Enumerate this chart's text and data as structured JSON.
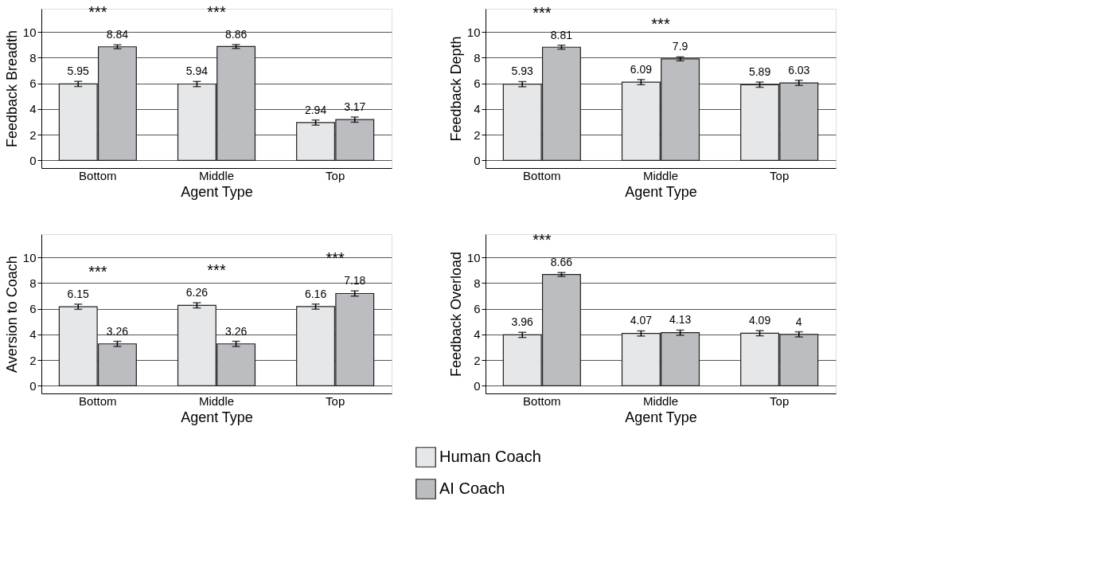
{
  "chart_data": [
    {
      "type": "bar",
      "xlabel": "Agent Type",
      "ylabel": "Feedback Breadth",
      "categories": [
        "Bottom",
        "Middle",
        "Top"
      ],
      "ylim": [
        -0.6,
        11.8
      ],
      "yticks": [
        0,
        2,
        4,
        6,
        8,
        10
      ],
      "grid": "y",
      "legend": "bottom",
      "data_labels": true,
      "series": [
        {
          "name": "Human Coach",
          "color": "#e6e7e8",
          "values": [
            5.95,
            5.94,
            2.94
          ],
          "errors": [
            0.2,
            0.2,
            0.2
          ]
        },
        {
          "name": "AI Coach",
          "color": "#bcbdc0",
          "values": [
            8.84,
            8.86,
            3.17
          ],
          "errors": [
            0.15,
            0.15,
            0.2
          ]
        }
      ],
      "annotations": [
        "***",
        "***"
      ]
    },
    {
      "type": "bar",
      "xlabel": "Agent Type",
      "ylabel": "Feedback Depth",
      "categories": [
        "Bottom",
        "Middle",
        "Top"
      ],
      "ylim": [
        -0.6,
        11.8
      ],
      "yticks": [
        0,
        2,
        4,
        6,
        8,
        10
      ],
      "grid": "y",
      "legend": "bottom",
      "data_labels": true,
      "series": [
        {
          "name": "Human Coach",
          "color": "#e6e7e8",
          "values": [
            5.93,
            6.09,
            5.89
          ],
          "errors": [
            0.2,
            0.2,
            0.2
          ]
        },
        {
          "name": "AI Coach",
          "color": "#bcbdc0",
          "values": [
            8.81,
            7.9,
            6.03
          ],
          "errors": [
            0.15,
            0.15,
            0.2
          ]
        }
      ],
      "annotations": [
        "***",
        "***"
      ]
    },
    {
      "type": "bar",
      "xlabel": "Agent Type",
      "ylabel": "Aversion to Coach",
      "categories": [
        "Bottom",
        "Middle",
        "Top"
      ],
      "ylim": [
        -0.6,
        11.8
      ],
      "yticks": [
        0,
        2,
        4,
        6,
        8,
        10
      ],
      "grid": "y",
      "legend": "bottom",
      "data_labels": true,
      "series": [
        {
          "name": "Human Coach",
          "color": "#e6e7e8",
          "values": [
            6.15,
            6.26,
            6.16
          ],
          "errors": [
            0.2,
            0.2,
            0.2
          ]
        },
        {
          "name": "AI Coach",
          "color": "#bcbdc0",
          "values": [
            3.26,
            3.26,
            7.18
          ],
          "errors": [
            0.2,
            0.2,
            0.2
          ]
        }
      ],
      "annotations": [
        "***",
        "***",
        "***"
      ]
    },
    {
      "type": "bar",
      "xlabel": "Agent Type",
      "ylabel": "Feedback Overload",
      "categories": [
        "Bottom",
        "Middle",
        "Top"
      ],
      "ylim": [
        -0.6,
        11.8
      ],
      "yticks": [
        0,
        2,
        4,
        6,
        8,
        10
      ],
      "grid": "y",
      "legend": "bottom",
      "data_labels": true,
      "series": [
        {
          "name": "Human Coach",
          "color": "#e6e7e8",
          "values": [
            3.96,
            4.07,
            4.09
          ],
          "errors": [
            0.2,
            0.2,
            0.2
          ]
        },
        {
          "name": "AI Coach",
          "color": "#bcbdc0",
          "values": [
            8.66,
            4.13,
            4
          ],
          "errors": [
            0.15,
            0.2,
            0.2
          ]
        }
      ],
      "annotations": [
        "***"
      ]
    }
  ]
}
